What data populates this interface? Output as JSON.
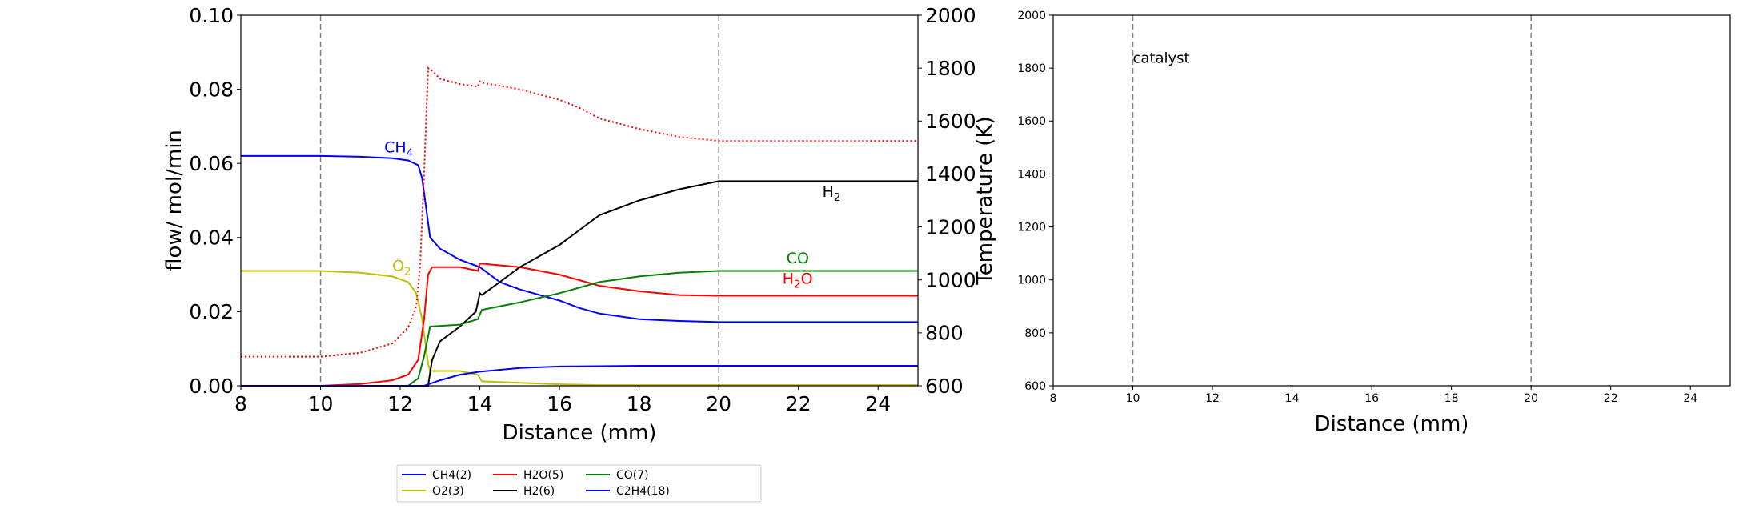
{
  "chart_data": [
    {
      "type": "line",
      "xlabel": "Distance (mm)",
      "ylabel": "flow/ mol/min",
      "ylabel_right": "Temperature (K)",
      "xlim": [
        8,
        25
      ],
      "ylim": [
        0,
        0.1
      ],
      "ylim_right": [
        600,
        2000
      ],
      "xticks": [
        "8",
        "10",
        "12",
        "14",
        "16",
        "18",
        "20",
        "22",
        "24"
      ],
      "yticks": [
        "0.00",
        "0.02",
        "0.04",
        "0.06",
        "0.08",
        "0.10"
      ],
      "yticks_right": [
        "600",
        "800",
        "1000",
        "1200",
        "1400",
        "1600",
        "1800",
        "2000"
      ],
      "vlines": [
        10,
        20
      ],
      "legend_position": "bottom-center",
      "series": [
        {
          "name": "CH4(2)",
          "color": "#0000ff",
          "style": "solid",
          "x": [
            8,
            10,
            11,
            11.8,
            12.2,
            12.45,
            12.55,
            12.65,
            12.75,
            13,
            13.5,
            14,
            14.5,
            15,
            16,
            16.5,
            17,
            18,
            19,
            20,
            25
          ],
          "y": [
            0.062,
            0.062,
            0.0618,
            0.0614,
            0.0608,
            0.0595,
            0.056,
            0.048,
            0.04,
            0.037,
            0.034,
            0.032,
            0.028,
            0.026,
            0.023,
            0.021,
            0.0195,
            0.018,
            0.0175,
            0.0172,
            0.0172
          ]
        },
        {
          "name": "O2(3)",
          "color": "#bfbf00",
          "style": "solid",
          "x": [
            8,
            10,
            11,
            11.8,
            12.2,
            12.4,
            12.55,
            12.7,
            12.75,
            13.5,
            13.95,
            14.05,
            15,
            16,
            17,
            25
          ],
          "y": [
            0.031,
            0.031,
            0.0305,
            0.0295,
            0.028,
            0.025,
            0.018,
            0.006,
            0.004,
            0.004,
            0.003,
            0.0012,
            0.0008,
            0.0004,
            0.0002,
            0.0002
          ]
        },
        {
          "name": "H2O(5)",
          "color": "#ff0000",
          "style": "solid",
          "x": [
            8,
            10,
            11,
            11.8,
            12.2,
            12.45,
            12.6,
            12.7,
            12.8,
            13.5,
            13.95,
            14,
            14.5,
            15,
            16,
            17,
            18,
            19,
            20,
            25
          ],
          "y": [
            0,
            0,
            0.0005,
            0.0015,
            0.003,
            0.007,
            0.018,
            0.03,
            0.032,
            0.032,
            0.031,
            0.033,
            0.0325,
            0.032,
            0.03,
            0.027,
            0.0255,
            0.0245,
            0.0243,
            0.0243
          ]
        },
        {
          "name": "H2(6)",
          "color": "#000000",
          "style": "solid",
          "x": [
            8,
            12.7,
            12.8,
            13,
            13.5,
            13.9,
            14,
            14.05,
            14.5,
            15,
            16,
            16.5,
            17,
            18,
            19,
            20,
            25
          ],
          "y": [
            0,
            0,
            0.007,
            0.012,
            0.016,
            0.02,
            0.025,
            0.0245,
            0.028,
            0.032,
            0.038,
            0.042,
            0.046,
            0.05,
            0.053,
            0.0552,
            0.0552
          ]
        },
        {
          "name": "CO(7)",
          "color": "#008000",
          "style": "solid",
          "x": [
            8,
            12.2,
            12.45,
            12.6,
            12.75,
            13.5,
            13.95,
            14.05,
            15,
            16,
            17,
            18,
            19,
            20,
            25
          ],
          "y": [
            0,
            0,
            0.002,
            0.008,
            0.016,
            0.0165,
            0.018,
            0.0205,
            0.0225,
            0.025,
            0.028,
            0.0295,
            0.0305,
            0.031,
            0.031
          ]
        },
        {
          "name": "C2H4(18)",
          "color": "#0000ff",
          "style": "solid",
          "x": [
            8,
            12.6,
            13,
            13.5,
            14,
            15,
            16,
            17,
            18,
            20,
            25
          ],
          "y": [
            0,
            0,
            0.0015,
            0.003,
            0.0038,
            0.0048,
            0.0052,
            0.0053,
            0.0054,
            0.0054,
            0.0054
          ]
        },
        {
          "name": "",
          "color": "#ff0000",
          "style": "dotted",
          "axis": "right",
          "x": [
            8,
            10,
            11,
            11.8,
            12.2,
            12.4,
            12.5,
            12.6,
            12.7,
            12.8,
            13,
            13.5,
            13.95,
            14,
            14.05,
            15,
            16,
            16.5,
            17,
            18,
            19,
            20,
            25
          ],
          "y": [
            710,
            710,
            725,
            760,
            820,
            900,
            1050,
            1400,
            1800,
            1790,
            1760,
            1740,
            1730,
            1750,
            1745,
            1720,
            1680,
            1650,
            1610,
            1570,
            1540,
            1525,
            1525
          ]
        }
      ],
      "annotations": [
        {
          "text": "CH",
          "sub": "4",
          "x": 11.6,
          "y": 0.063,
          "color": "#0000ff"
        },
        {
          "text": "O",
          "sub": "2",
          "x": 11.8,
          "y": 0.031,
          "color": "#bfbf00"
        },
        {
          "text": "H",
          "sub": "2",
          "x": 22.6,
          "y": 0.051,
          "color": "#000000"
        },
        {
          "text": "CO",
          "x": 21.7,
          "y": 0.033,
          "color": "#008000"
        },
        {
          "text": "H",
          "sub": "2",
          "post": "O",
          "x": 21.6,
          "y": 0.0275,
          "color": "#ff0000"
        }
      ],
      "legend": {
        "items": [
          {
            "label": "CH4(2)",
            "color": "#0000ff"
          },
          {
            "label": "O2(3)",
            "color": "#bfbf00"
          },
          {
            "label": "H2O(5)",
            "color": "#ff0000"
          },
          {
            "label": "H2(6)",
            "color": "#000000"
          },
          {
            "label": "CO(7)",
            "color": "#008000"
          },
          {
            "label": "C2H4(18)",
            "color": "#0000ff"
          }
        ]
      }
    },
    {
      "type": "line",
      "xlabel": "Distance (mm)",
      "xlim": [
        8,
        25
      ],
      "ylim": [
        600,
        2000
      ],
      "xticks": [
        "8",
        "10",
        "12",
        "14",
        "16",
        "18",
        "20",
        "22",
        "24"
      ],
      "yticks": [
        "600",
        "800",
        "1000",
        "1200",
        "1400",
        "1600",
        "1800",
        "2000"
      ],
      "vlines": [
        10,
        20
      ],
      "annotations": [
        {
          "text": "catalyst",
          "x": 10,
          "y": 1820
        }
      ],
      "series": []
    }
  ]
}
